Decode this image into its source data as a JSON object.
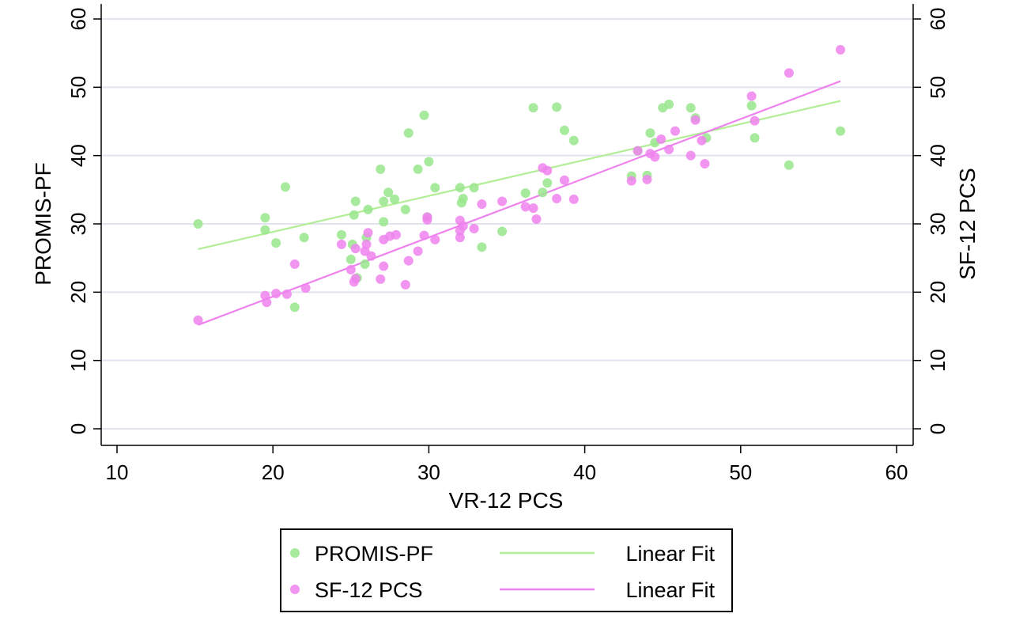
{
  "chart_data": {
    "type": "scatter",
    "xlabel": "VR-12 PCS",
    "ylabel": "PROMIS-PF",
    "y2label": "SF-12 PCS",
    "xlim": [
      10,
      60
    ],
    "ylim": [
      0,
      60
    ],
    "y2lim": [
      0,
      60
    ],
    "xticks": [
      "10",
      "20",
      "30",
      "40",
      "50",
      "60"
    ],
    "yticks": [
      "0",
      "10",
      "20",
      "30",
      "40",
      "50",
      "60"
    ],
    "y2ticks": [
      "0",
      "10",
      "20",
      "30",
      "40",
      "50",
      "60"
    ],
    "grid": true,
    "legend_position": "bottom",
    "series": [
      {
        "name": "PROMIS-PF",
        "color": "#99e68c",
        "points": [
          [
            15.2,
            30.0
          ],
          [
            19.5,
            30.9
          ],
          [
            19.5,
            29.1
          ],
          [
            20.2,
            27.2
          ],
          [
            20.8,
            35.4
          ],
          [
            21.4,
            17.8
          ],
          [
            22.0,
            28.0
          ],
          [
            24.4,
            28.4
          ],
          [
            25.0,
            24.8
          ],
          [
            25.1,
            27.0
          ],
          [
            25.2,
            31.3
          ],
          [
            25.3,
            33.3
          ],
          [
            25.4,
            22.1
          ],
          [
            25.9,
            24.1
          ],
          [
            26.0,
            28.0
          ],
          [
            26.1,
            32.1
          ],
          [
            26.9,
            38.0
          ],
          [
            27.1,
            30.3
          ],
          [
            27.1,
            33.3
          ],
          [
            27.4,
            34.6
          ],
          [
            27.8,
            33.6
          ],
          [
            28.5,
            32.1
          ],
          [
            28.7,
            43.3
          ],
          [
            29.3,
            38.0
          ],
          [
            29.7,
            45.9
          ],
          [
            29.9,
            31.0
          ],
          [
            30.0,
            39.1
          ],
          [
            30.4,
            35.3
          ],
          [
            32.0,
            35.3
          ],
          [
            32.1,
            33.1
          ],
          [
            32.2,
            33.7
          ],
          [
            32.9,
            35.3
          ],
          [
            33.4,
            26.6
          ],
          [
            34.7,
            28.9
          ],
          [
            36.2,
            34.5
          ],
          [
            36.7,
            47.0
          ],
          [
            37.3,
            34.6
          ],
          [
            37.6,
            36.0
          ],
          [
            38.2,
            47.1
          ],
          [
            38.7,
            43.7
          ],
          [
            39.3,
            42.2
          ],
          [
            43.0,
            37.0
          ],
          [
            43.4,
            40.7
          ],
          [
            44.0,
            37.1
          ],
          [
            44.2,
            43.3
          ],
          [
            44.5,
            41.9
          ],
          [
            45.0,
            47.0
          ],
          [
            45.4,
            47.5
          ],
          [
            46.8,
            47.0
          ],
          [
            47.1,
            45.5
          ],
          [
            47.8,
            42.6
          ],
          [
            50.7,
            47.3
          ],
          [
            50.9,
            42.6
          ],
          [
            53.1,
            38.6
          ],
          [
            56.4,
            43.6
          ]
        ]
      },
      {
        "name": "SF-12 PCS",
        "color": "#ee82ee",
        "points": [
          [
            15.2,
            15.9
          ],
          [
            19.5,
            19.5
          ],
          [
            19.6,
            18.5
          ],
          [
            20.2,
            19.8
          ],
          [
            20.9,
            19.7
          ],
          [
            21.4,
            24.1
          ],
          [
            22.1,
            20.6
          ],
          [
            24.4,
            27.0
          ],
          [
            25.0,
            23.3
          ],
          [
            25.2,
            21.5
          ],
          [
            25.3,
            22.0
          ],
          [
            25.3,
            26.4
          ],
          [
            25.9,
            26.0
          ],
          [
            26.0,
            27.0
          ],
          [
            26.1,
            28.7
          ],
          [
            26.3,
            25.3
          ],
          [
            26.9,
            21.9
          ],
          [
            27.1,
            23.8
          ],
          [
            27.1,
            27.7
          ],
          [
            27.5,
            28.2
          ],
          [
            27.9,
            28.4
          ],
          [
            28.5,
            21.1
          ],
          [
            28.7,
            24.6
          ],
          [
            29.3,
            26.0
          ],
          [
            29.7,
            28.3
          ],
          [
            29.9,
            30.6
          ],
          [
            29.9,
            31.0
          ],
          [
            30.4,
            27.7
          ],
          [
            32.0,
            28.0
          ],
          [
            32.0,
            29.0
          ],
          [
            32.0,
            30.5
          ],
          [
            32.2,
            29.7
          ],
          [
            32.9,
            29.3
          ],
          [
            33.4,
            32.9
          ],
          [
            34.7,
            33.3
          ],
          [
            36.2,
            32.5
          ],
          [
            36.7,
            32.3
          ],
          [
            36.9,
            30.7
          ],
          [
            37.3,
            38.2
          ],
          [
            37.6,
            37.8
          ],
          [
            38.2,
            33.7
          ],
          [
            38.7,
            36.4
          ],
          [
            39.3,
            33.6
          ],
          [
            43.0,
            36.3
          ],
          [
            43.4,
            40.7
          ],
          [
            44.0,
            36.5
          ],
          [
            44.2,
            40.3
          ],
          [
            44.5,
            39.8
          ],
          [
            44.9,
            42.4
          ],
          [
            45.4,
            40.9
          ],
          [
            45.8,
            43.6
          ],
          [
            46.8,
            40.0
          ],
          [
            47.1,
            45.2
          ],
          [
            47.5,
            42.2
          ],
          [
            47.7,
            38.8
          ],
          [
            50.7,
            48.7
          ],
          [
            50.9,
            45.1
          ],
          [
            53.1,
            52.1
          ],
          [
            56.4,
            55.5
          ]
        ]
      }
    ],
    "fits": [
      {
        "name": "Linear Fit",
        "series": "PROMIS-PF",
        "color": "#b2ee96",
        "x": [
          15.2,
          56.4
        ],
        "y": [
          26.3,
          48.0
        ]
      },
      {
        "name": "Linear Fit",
        "series": "SF-12 PCS",
        "color": "#ee82ee",
        "x": [
          15.2,
          56.4
        ],
        "y": [
          15.2,
          50.9
        ]
      }
    ],
    "legend": [
      {
        "kind": "marker",
        "label": "PROMIS-PF",
        "color": "#99e68c"
      },
      {
        "kind": "line",
        "label": "Linear Fit",
        "color": "#b2ee96"
      },
      {
        "kind": "marker",
        "label": "SF-12 PCS",
        "color": "#ee82ee"
      },
      {
        "kind": "line",
        "label": "Linear Fit",
        "color": "#ee82ee"
      }
    ],
    "gridline_color": "#e3e3f0"
  }
}
